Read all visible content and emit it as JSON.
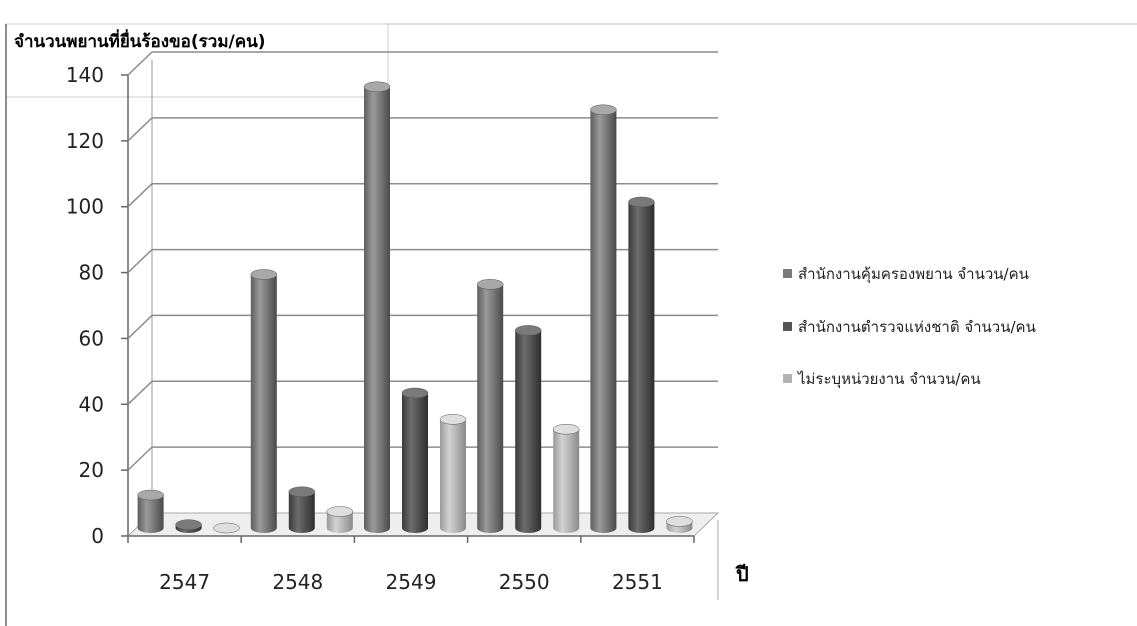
{
  "chart_data": {
    "type": "bar",
    "title": "",
    "ylabel": "จำนวนพยานที่ยื่นร้องขอ(รวม/คน)",
    "xlabel": "ปี",
    "categories": [
      "2547",
      "2548",
      "2549",
      "2550",
      "2551"
    ],
    "series": [
      {
        "name": "สำนักงานคุ้มครองพยาน จำนวน/คน",
        "values": [
          10,
          77,
          134,
          74,
          127
        ],
        "color": "#7a7a7a"
      },
      {
        "name": "สำนักงานตำรวจแห่งชาติ จำนวน/คน",
        "values": [
          1,
          11,
          41,
          60,
          99
        ],
        "color": "#555555"
      },
      {
        "name": "ไม่ระบุหน่วยงาน จำนวน/คน",
        "values": [
          0,
          5,
          33,
          30,
          2
        ],
        "color": "#b3b3b3"
      }
    ],
    "ylim": [
      0,
      140
    ],
    "yticks": [
      "0",
      "20",
      "40",
      "60",
      "80",
      "100",
      "120",
      "140"
    ],
    "grid": true,
    "legend_position": "right",
    "style": "3d-cylinder"
  }
}
